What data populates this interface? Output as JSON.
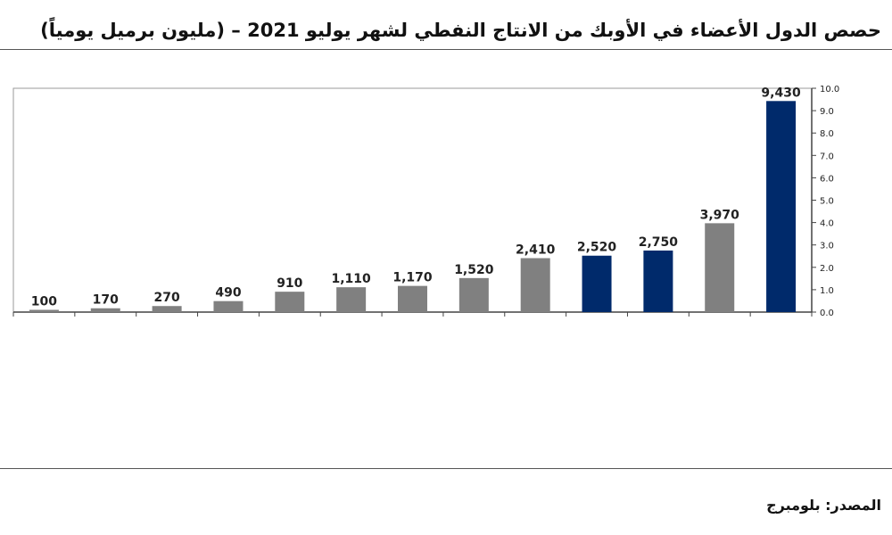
{
  "title": "حصص الدول الأعضاء في الأوبك من الانتاج النفطي لشهر يوليو 2021 – (مليون برميل يومياً)",
  "source": "المصدر: بلومبرج",
  "colors": {
    "gray": "#808080",
    "navy": "#002a6b",
    "axis": "#444444",
    "label": "#222222"
  },
  "chart_data": {
    "type": "bar",
    "title": "حصص الدول الأعضاء في الأوبك من الانتاج النفطي لشهر يوليو 2021 – (مليون برميل يومياً)",
    "xlabel": "",
    "ylabel": "",
    "categories": [
      "",
      "",
      "",
      "",
      "",
      "",
      "",
      "",
      "",
      "",
      "",
      "",
      ""
    ],
    "values": [
      100,
      170,
      270,
      490,
      910,
      1110,
      1170,
      1520,
      2410,
      2520,
      2750,
      3970,
      9430
    ],
    "data_labels": [
      "100",
      "170",
      "270",
      "490",
      "910",
      "1,110",
      "1,170",
      "1,520",
      "2,410",
      "2,520",
      "2,750",
      "3,970",
      "9,430"
    ],
    "bar_colors": [
      "gray",
      "gray",
      "gray",
      "gray",
      "gray",
      "gray",
      "gray",
      "gray",
      "gray",
      "navy",
      "navy",
      "gray",
      "navy"
    ],
    "y_axis_side": "right",
    "ylim": [
      0,
      10
    ],
    "y_ticks": [
      "0.0",
      "1.0",
      "2.0",
      "3.0",
      "4.0",
      "5.0",
      "6.0",
      "7.0",
      "8.0",
      "9.0",
      "10.0"
    ],
    "grid": false,
    "legend": "none"
  }
}
